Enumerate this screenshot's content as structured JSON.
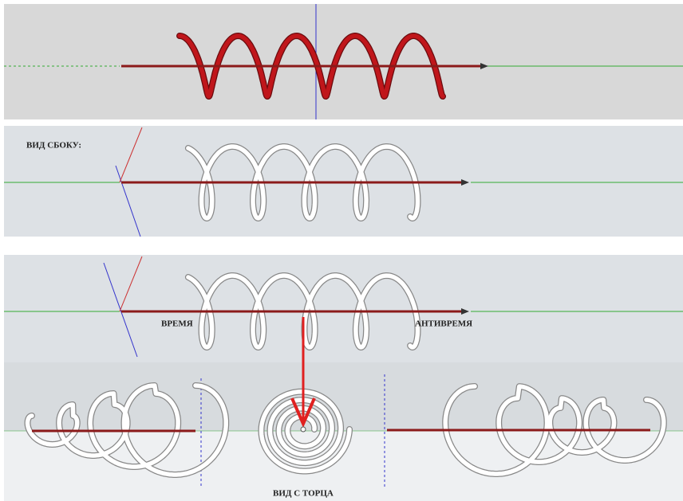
{
  "labels": {
    "side_view": "ВИД СБОКУ:",
    "time": "ВРЕМЯ",
    "antitime": "АНТИВРЕМЯ",
    "end_view": "ВИД С ТОРЦА"
  }
}
